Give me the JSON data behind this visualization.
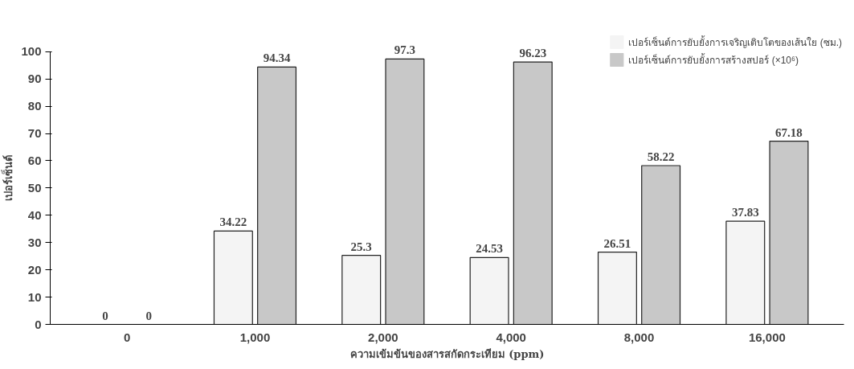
{
  "chart_data": {
    "type": "bar",
    "xlabel": "ความเข้มข้นของสารสกัดกระเทียม (ppm)",
    "ylabel": "เปอร์เซ็นต์",
    "categories": [
      "0",
      "1,000",
      "2,000",
      "4,000",
      "8,000",
      "16,000"
    ],
    "series": [
      {
        "name": "เปอร์เซ็นต์การยับยั้งการเจริญเติบโตของเส้นใย (ซม.)",
        "color": "#f4f4f4",
        "values": [
          0,
          34.22,
          25.3,
          24.53,
          26.51,
          37.83
        ]
      },
      {
        "name": "เปอร์เซ็นต์การยับยั้งการสร้างสปอร์ (×10⁶)",
        "color": "#c8c8c8",
        "values": [
          0,
          94.34,
          97.3,
          96.23,
          58.22,
          67.18
        ]
      }
    ],
    "ylim": [
      0,
      100
    ],
    "yticks": [
      0,
      10,
      20,
      30,
      40,
      50,
      60,
      70,
      80,
      90,
      100
    ],
    "grid": false,
    "legend": "top right",
    "data_labels": true
  }
}
